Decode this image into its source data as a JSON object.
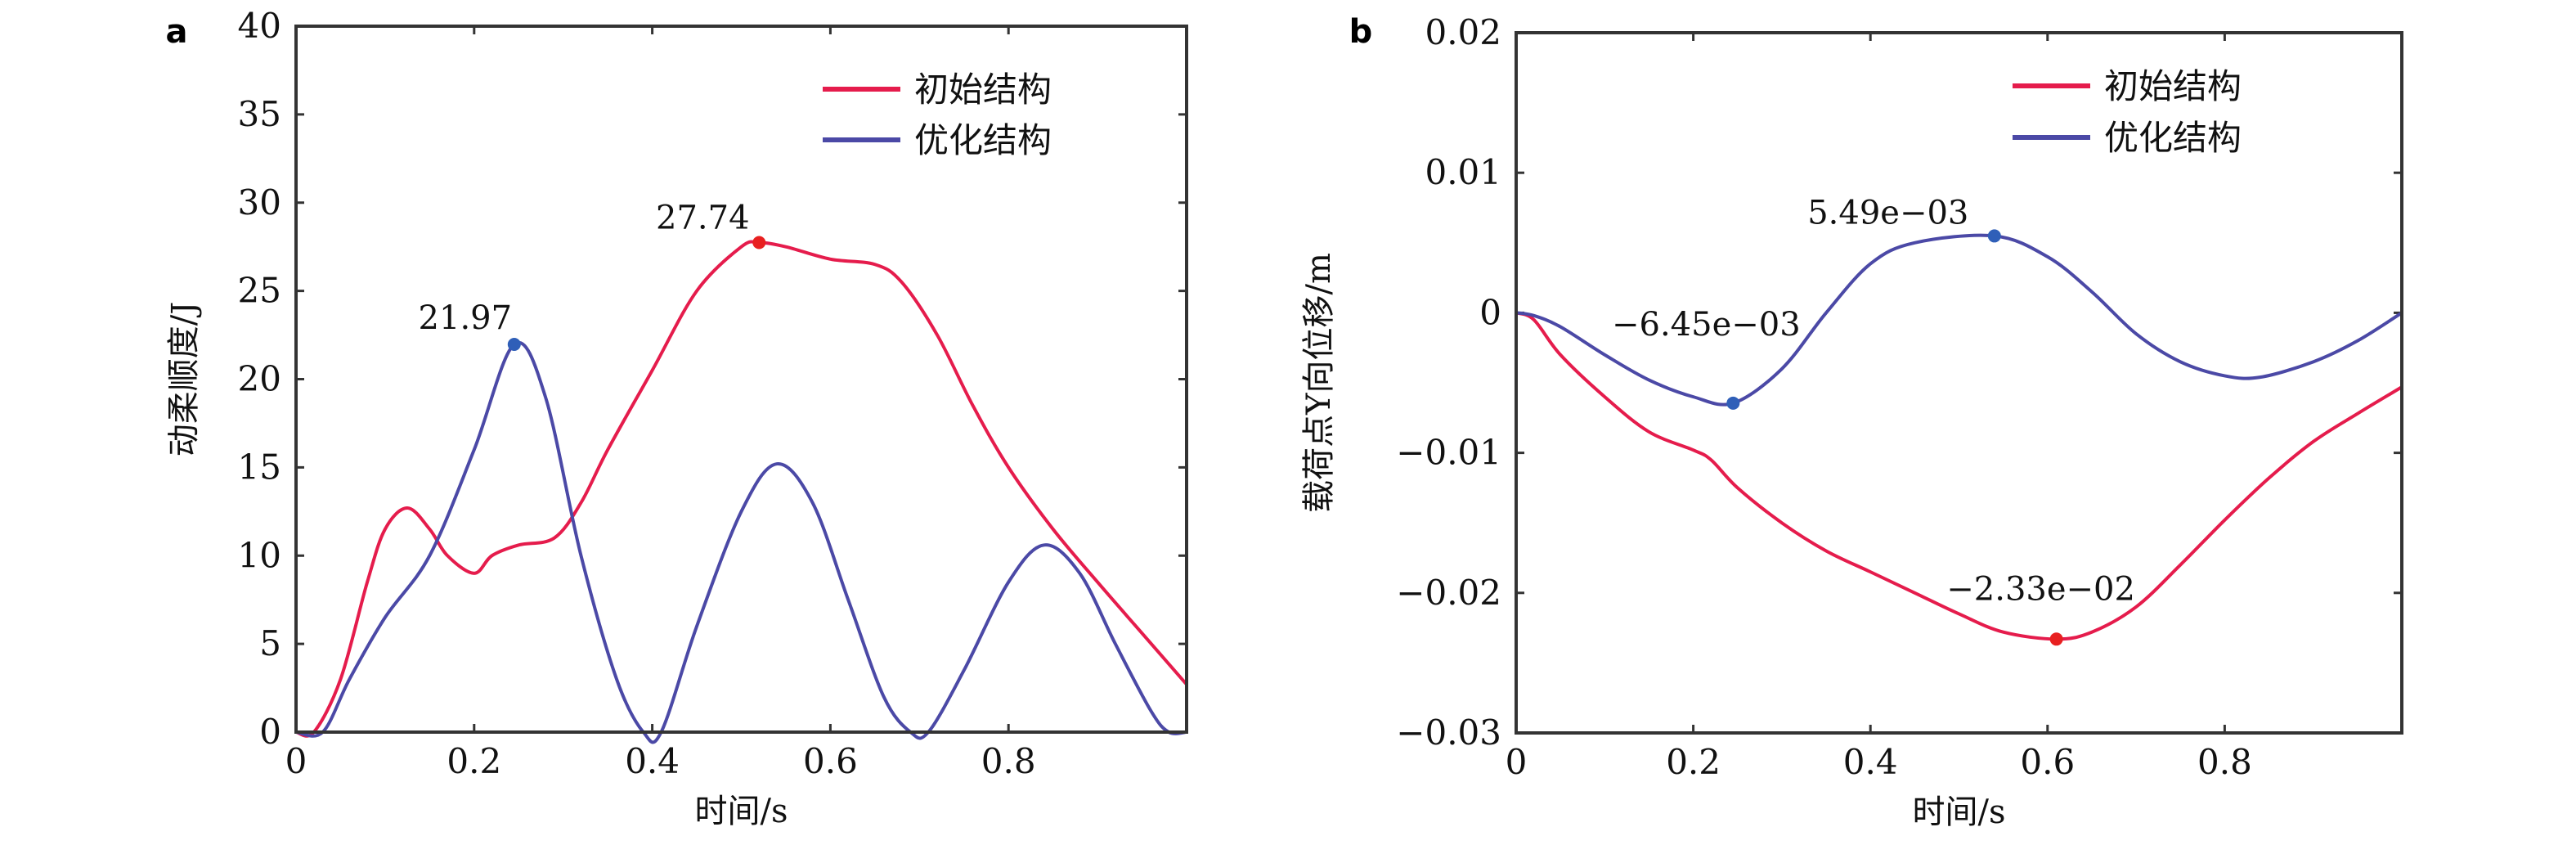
{
  "colors": {
    "initial": "#e51c4c",
    "optimized": "#4b49a6",
    "marker_initial": "#e82020",
    "marker_optimized": "#2f5fb8"
  },
  "chart_data": [
    {
      "type": "line",
      "panel": "a",
      "xlabel": "时间/s",
      "ylabel": "动柔顺度/J",
      "xlim": [
        0,
        1
      ],
      "ylim": [
        0,
        40
      ],
      "xticks": [
        0,
        0.2,
        0.4,
        0.6,
        0.8
      ],
      "xtick_labels": [
        "0",
        "0.2",
        "0.4",
        "0.6",
        "0.8"
      ],
      "yticks": [
        0,
        5,
        10,
        15,
        20,
        25,
        30,
        35,
        40
      ],
      "ytick_labels": [
        "0",
        "5",
        "10",
        "15",
        "20",
        "25",
        "30",
        "35",
        "40"
      ],
      "legend": {
        "placement": "top-right",
        "entries": [
          "初始结构",
          "优化结构"
        ]
      },
      "series": [
        {
          "name": "初始结构",
          "key": "initial",
          "x": [
            0,
            0.02,
            0.05,
            0.08,
            0.1,
            0.125,
            0.15,
            0.17,
            0.2,
            0.22,
            0.25,
            0.29,
            0.32,
            0.35,
            0.4,
            0.45,
            0.5,
            0.52,
            0.55,
            0.6,
            0.65,
            0.68,
            0.72,
            0.76,
            0.8,
            0.85,
            0.9,
            0.95,
            1.0
          ],
          "y": [
            0,
            0,
            3,
            8.5,
            11.5,
            12.7,
            11.5,
            10,
            9,
            10,
            10.6,
            11,
            13,
            16,
            20.5,
            25,
            27.5,
            27.74,
            27.5,
            26.8,
            26.5,
            25.5,
            22.5,
            18.5,
            15,
            11.5,
            8.5,
            5.6,
            2.7
          ]
        },
        {
          "name": "优化结构",
          "key": "optimized",
          "x": [
            0,
            0.03,
            0.06,
            0.1,
            0.15,
            0.2,
            0.245,
            0.28,
            0.32,
            0.36,
            0.39,
            0.41,
            0.45,
            0.5,
            0.54,
            0.58,
            0.62,
            0.66,
            0.69,
            0.71,
            0.75,
            0.8,
            0.84,
            0.88,
            0.92,
            0.96,
            0.98,
            1.0
          ],
          "y": [
            0,
            0,
            3,
            6.5,
            10,
            16,
            21.97,
            19,
            10,
            3,
            0,
            0,
            6,
            12.5,
            15.2,
            13,
            7.5,
            2,
            0,
            0,
            3.5,
            8.5,
            10.6,
            9,
            5,
            1.2,
            0,
            0
          ]
        }
      ],
      "annotations": [
        {
          "text": "27.74",
          "x": 0.52,
          "y": 27.74,
          "series": "initial"
        },
        {
          "text": "21.97",
          "x": 0.245,
          "y": 21.97,
          "series": "optimized"
        }
      ]
    },
    {
      "type": "line",
      "panel": "b",
      "xlabel": "时间/s",
      "ylabel": "载荷点Y向位移/m",
      "xlim": [
        0,
        1
      ],
      "ylim": [
        -0.03,
        0.02
      ],
      "xticks": [
        0,
        0.2,
        0.4,
        0.6,
        0.8
      ],
      "xtick_labels": [
        "0",
        "0.2",
        "0.4",
        "0.6",
        "0.8"
      ],
      "yticks": [
        -0.03,
        -0.02,
        -0.01,
        0,
        0.01,
        0.02
      ],
      "ytick_labels": [
        "−0.03",
        "−0.02",
        "−0.01",
        "0",
        "0.01",
        "0.02"
      ],
      "legend": {
        "placement": "top-right",
        "entries": [
          "初始结构",
          "优化结构"
        ]
      },
      "series": [
        {
          "name": "初始结构",
          "key": "initial",
          "x": [
            0,
            0.02,
            0.05,
            0.1,
            0.15,
            0.2,
            0.22,
            0.25,
            0.3,
            0.35,
            0.4,
            0.45,
            0.5,
            0.55,
            0.61,
            0.65,
            0.7,
            0.75,
            0.8,
            0.85,
            0.9,
            0.95,
            1.0
          ],
          "y": [
            0,
            -0.0005,
            -0.003,
            -0.006,
            -0.0085,
            -0.0098,
            -0.0105,
            -0.0125,
            -0.015,
            -0.017,
            -0.0185,
            -0.02,
            -0.0215,
            -0.0228,
            -0.0233,
            -0.0228,
            -0.021,
            -0.018,
            -0.0148,
            -0.0118,
            -0.0092,
            -0.0072,
            -0.0053
          ]
        },
        {
          "name": "优化结构",
          "key": "optimized",
          "x": [
            0,
            0.02,
            0.05,
            0.1,
            0.15,
            0.2,
            0.245,
            0.3,
            0.35,
            0.4,
            0.45,
            0.54,
            0.6,
            0.65,
            0.7,
            0.75,
            0.8,
            0.84,
            0.9,
            0.95,
            1.0
          ],
          "y": [
            0,
            -0.0002,
            -0.001,
            -0.003,
            -0.0048,
            -0.006,
            -0.00645,
            -0.004,
            0,
            0.0035,
            0.005,
            0.00549,
            0.004,
            0.0015,
            -0.0015,
            -0.0035,
            -0.0045,
            -0.0046,
            -0.0035,
            -0.002,
            0
          ]
        }
      ],
      "annotations": [
        {
          "text": "5.49e−03",
          "x": 0.54,
          "y": 0.00549,
          "series": "optimized"
        },
        {
          "text": "−6.45e−03",
          "x": 0.245,
          "y": -0.00645,
          "series": "optimized"
        },
        {
          "text": "−2.33e−02",
          "x": 0.61,
          "y": -0.0233,
          "series": "initial"
        }
      ]
    }
  ]
}
